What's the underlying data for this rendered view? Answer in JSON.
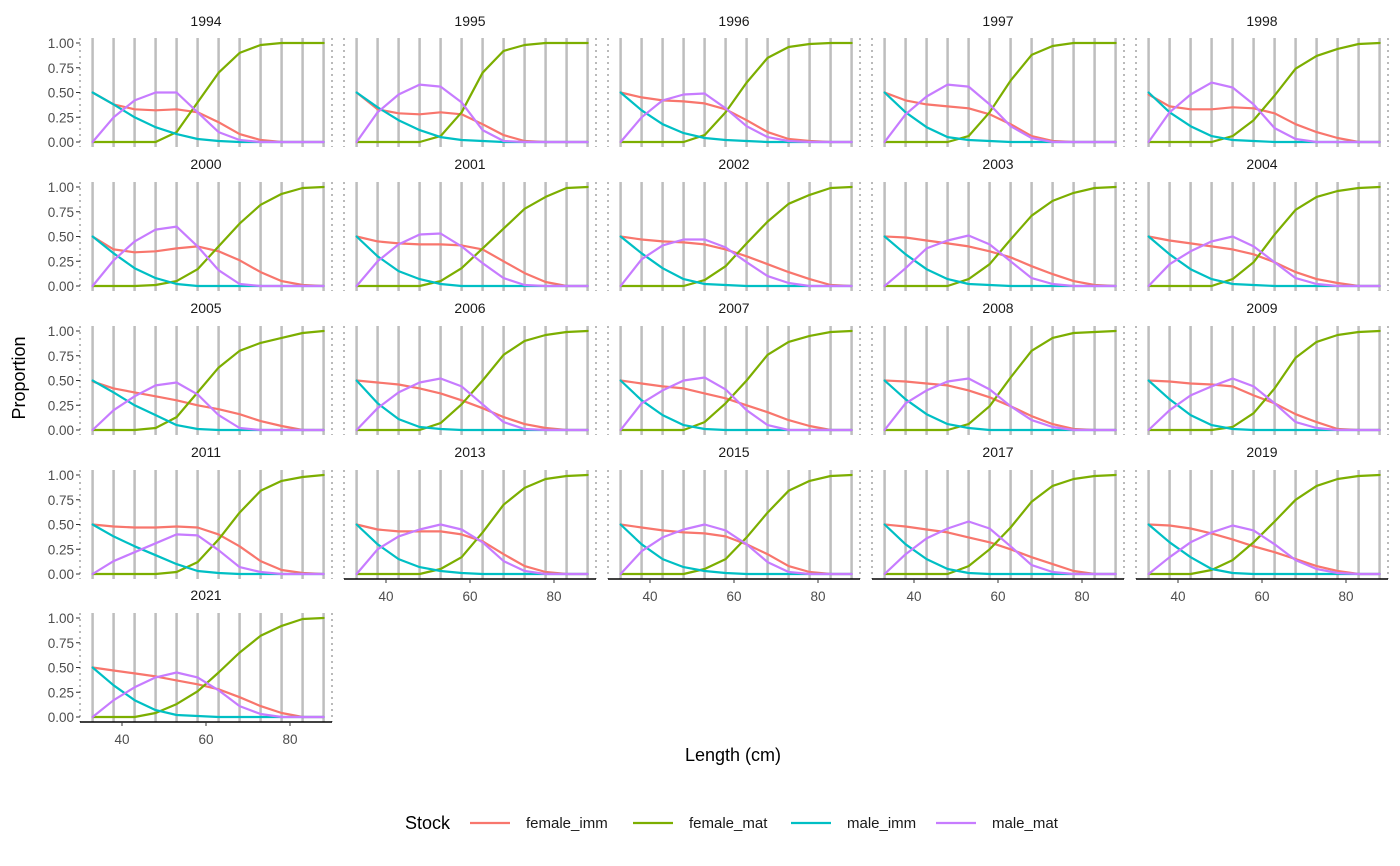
{
  "chart_data": {
    "type": "line",
    "facet_by": "year",
    "xlabel": "Length (cm)",
    "ylabel": "Proportion",
    "xlim": [
      30,
      90
    ],
    "ylim": [
      0,
      1
    ],
    "x_ticks": [
      40,
      60,
      80
    ],
    "y_ticks": [
      0,
      0.25,
      0.5,
      0.75,
      1
    ],
    "y_tick_labels": [
      "0.00",
      "0.25",
      "0.50",
      "0.75",
      "1.00"
    ],
    "grid": "vertical major grid lines only",
    "x": [
      33,
      38,
      43,
      48,
      53,
      58,
      63,
      68,
      73,
      78,
      83,
      88
    ],
    "legend": {
      "title": "Stock",
      "position": "bottom",
      "entries": [
        {
          "name": "female_imm",
          "color": "#F8766D"
        },
        {
          "name": "female_mat",
          "color": "#7CAE00"
        },
        {
          "name": "male_imm",
          "color": "#00BFC4"
        },
        {
          "name": "male_mat",
          "color": "#C77CFF"
        }
      ]
    },
    "panels": [
      {
        "label": "1994",
        "female_imm": [
          0.5,
          0.38,
          0.33,
          0.32,
          0.33,
          0.3,
          0.2,
          0.08,
          0.02,
          0,
          0,
          0
        ],
        "female_mat": [
          0,
          0,
          0,
          0,
          0.1,
          0.4,
          0.7,
          0.9,
          0.98,
          1,
          1,
          1
        ],
        "male_imm": [
          0.5,
          0.38,
          0.25,
          0.15,
          0.08,
          0.03,
          0.01,
          0,
          0,
          0,
          0,
          0
        ],
        "male_mat": [
          0,
          0.25,
          0.42,
          0.5,
          0.5,
          0.3,
          0.1,
          0.02,
          0,
          0,
          0,
          0
        ]
      },
      {
        "label": "1995",
        "female_imm": [
          0.5,
          0.33,
          0.29,
          0.28,
          0.3,
          0.28,
          0.18,
          0.07,
          0.01,
          0,
          0,
          0
        ],
        "female_mat": [
          0,
          0,
          0,
          0,
          0.06,
          0.3,
          0.7,
          0.92,
          0.98,
          1,
          1,
          1
        ],
        "male_imm": [
          0.5,
          0.35,
          0.22,
          0.12,
          0.05,
          0.02,
          0.01,
          0,
          0,
          0,
          0,
          0
        ],
        "male_mat": [
          0,
          0.3,
          0.48,
          0.58,
          0.56,
          0.4,
          0.12,
          0.01,
          0,
          0,
          0,
          0
        ]
      },
      {
        "label": "1996",
        "female_imm": [
          0.5,
          0.45,
          0.42,
          0.41,
          0.39,
          0.33,
          0.22,
          0.1,
          0.03,
          0.01,
          0,
          0
        ],
        "female_mat": [
          0,
          0,
          0,
          0,
          0.07,
          0.3,
          0.6,
          0.85,
          0.96,
          0.99,
          1,
          1
        ],
        "male_imm": [
          0.5,
          0.32,
          0.18,
          0.09,
          0.04,
          0.02,
          0.01,
          0,
          0,
          0,
          0,
          0
        ],
        "male_mat": [
          0,
          0.25,
          0.42,
          0.48,
          0.49,
          0.34,
          0.16,
          0.05,
          0.01,
          0,
          0,
          0
        ]
      },
      {
        "label": "1997",
        "female_imm": [
          0.5,
          0.42,
          0.38,
          0.36,
          0.34,
          0.28,
          0.18,
          0.06,
          0.01,
          0,
          0,
          0
        ],
        "female_mat": [
          0,
          0,
          0,
          0,
          0.06,
          0.3,
          0.62,
          0.88,
          0.97,
          1,
          1,
          1
        ],
        "male_imm": [
          0.5,
          0.3,
          0.15,
          0.05,
          0.02,
          0.01,
          0,
          0,
          0,
          0,
          0,
          0
        ],
        "male_mat": [
          0,
          0.28,
          0.46,
          0.58,
          0.56,
          0.38,
          0.16,
          0.04,
          0,
          0,
          0,
          0
        ]
      },
      {
        "label": "1998",
        "female_imm": [
          0.48,
          0.36,
          0.33,
          0.33,
          0.35,
          0.34,
          0.29,
          0.18,
          0.1,
          0.04,
          0,
          0
        ],
        "female_mat": [
          0,
          0,
          0,
          0,
          0.06,
          0.22,
          0.47,
          0.74,
          0.87,
          0.94,
          0.99,
          1
        ],
        "male_imm": [
          0.5,
          0.3,
          0.16,
          0.06,
          0.02,
          0.01,
          0,
          0,
          0,
          0,
          0,
          0
        ],
        "male_mat": [
          0,
          0.3,
          0.48,
          0.6,
          0.55,
          0.38,
          0.14,
          0.03,
          0,
          0,
          0,
          0
        ]
      },
      {
        "label": "2000",
        "female_imm": [
          0.5,
          0.37,
          0.34,
          0.35,
          0.38,
          0.4,
          0.35,
          0.26,
          0.14,
          0.05,
          0.01,
          0
        ],
        "female_mat": [
          0,
          0,
          0,
          0.01,
          0.05,
          0.17,
          0.4,
          0.63,
          0.82,
          0.93,
          0.99,
          1
        ],
        "male_imm": [
          0.5,
          0.33,
          0.18,
          0.08,
          0.02,
          0,
          0,
          0,
          0,
          0,
          0,
          0
        ],
        "male_mat": [
          0,
          0.26,
          0.45,
          0.57,
          0.6,
          0.4,
          0.16,
          0.02,
          0,
          0,
          0,
          0
        ]
      },
      {
        "label": "2001",
        "female_imm": [
          0.5,
          0.45,
          0.43,
          0.42,
          0.42,
          0.41,
          0.37,
          0.25,
          0.13,
          0.04,
          0,
          0
        ],
        "female_mat": [
          0,
          0,
          0,
          0,
          0.05,
          0.18,
          0.38,
          0.58,
          0.78,
          0.9,
          0.99,
          1
        ],
        "male_imm": [
          0.5,
          0.3,
          0.15,
          0.07,
          0.02,
          0,
          0,
          0,
          0,
          0,
          0,
          0
        ],
        "male_mat": [
          0,
          0.25,
          0.42,
          0.52,
          0.53,
          0.4,
          0.23,
          0.08,
          0.01,
          0,
          0,
          0
        ]
      },
      {
        "label": "2002",
        "female_imm": [
          0.5,
          0.47,
          0.45,
          0.44,
          0.42,
          0.37,
          0.3,
          0.22,
          0.14,
          0.07,
          0.01,
          0
        ],
        "female_mat": [
          0,
          0,
          0,
          0,
          0.06,
          0.2,
          0.43,
          0.65,
          0.83,
          0.92,
          0.99,
          1
        ],
        "male_imm": [
          0.5,
          0.33,
          0.18,
          0.07,
          0.02,
          0.01,
          0,
          0,
          0,
          0,
          0,
          0
        ],
        "male_mat": [
          0,
          0.27,
          0.41,
          0.47,
          0.47,
          0.39,
          0.24,
          0.1,
          0.03,
          0,
          0,
          0
        ]
      },
      {
        "label": "2003",
        "female_imm": [
          0.5,
          0.49,
          0.46,
          0.43,
          0.4,
          0.35,
          0.29,
          0.2,
          0.12,
          0.05,
          0.01,
          0
        ],
        "female_mat": [
          0,
          0,
          0,
          0,
          0.07,
          0.22,
          0.47,
          0.71,
          0.86,
          0.94,
          0.99,
          1
        ],
        "male_imm": [
          0.5,
          0.32,
          0.17,
          0.07,
          0.02,
          0.01,
          0,
          0,
          0,
          0,
          0,
          0
        ],
        "male_mat": [
          0,
          0.18,
          0.38,
          0.46,
          0.51,
          0.42,
          0.25,
          0.08,
          0.02,
          0,
          0,
          0
        ]
      },
      {
        "label": "2004",
        "female_imm": [
          0.5,
          0.46,
          0.43,
          0.4,
          0.37,
          0.32,
          0.24,
          0.14,
          0.07,
          0.03,
          0,
          0
        ],
        "female_mat": [
          0,
          0,
          0,
          0,
          0.07,
          0.24,
          0.52,
          0.77,
          0.9,
          0.96,
          0.99,
          1
        ],
        "male_imm": [
          0.5,
          0.32,
          0.17,
          0.07,
          0.02,
          0.01,
          0,
          0,
          0,
          0,
          0,
          0
        ],
        "male_mat": [
          0,
          0.22,
          0.35,
          0.45,
          0.5,
          0.4,
          0.24,
          0.08,
          0.02,
          0,
          0,
          0
        ]
      },
      {
        "label": "2005",
        "female_imm": [
          0.49,
          0.42,
          0.38,
          0.34,
          0.3,
          0.25,
          0.21,
          0.16,
          0.09,
          0.04,
          0,
          0
        ],
        "female_mat": [
          0,
          0,
          0,
          0.02,
          0.13,
          0.38,
          0.63,
          0.8,
          0.88,
          0.93,
          0.98,
          1
        ],
        "male_imm": [
          0.5,
          0.38,
          0.25,
          0.15,
          0.05,
          0.01,
          0,
          0,
          0,
          0,
          0,
          0
        ],
        "male_mat": [
          0,
          0.2,
          0.34,
          0.45,
          0.48,
          0.36,
          0.15,
          0.02,
          0,
          0,
          0,
          0
        ]
      },
      {
        "label": "2006",
        "female_imm": [
          0.5,
          0.48,
          0.46,
          0.42,
          0.37,
          0.3,
          0.22,
          0.13,
          0.06,
          0.02,
          0,
          0
        ],
        "female_mat": [
          0,
          0,
          0,
          0,
          0.07,
          0.26,
          0.5,
          0.76,
          0.9,
          0.96,
          0.99,
          1
        ],
        "male_imm": [
          0.5,
          0.27,
          0.11,
          0.03,
          0.01,
          0,
          0,
          0,
          0,
          0,
          0,
          0
        ],
        "male_mat": [
          0,
          0.22,
          0.38,
          0.48,
          0.52,
          0.44,
          0.26,
          0.08,
          0.01,
          0,
          0,
          0
        ]
      },
      {
        "label": "2007",
        "female_imm": [
          0.5,
          0.47,
          0.44,
          0.42,
          0.37,
          0.32,
          0.25,
          0.18,
          0.1,
          0.04,
          0,
          0
        ],
        "female_mat": [
          0,
          0,
          0,
          0,
          0.08,
          0.27,
          0.5,
          0.76,
          0.89,
          0.95,
          0.99,
          1
        ],
        "male_imm": [
          0.5,
          0.3,
          0.15,
          0.05,
          0.01,
          0,
          0,
          0,
          0,
          0,
          0,
          0
        ],
        "male_mat": [
          0,
          0.27,
          0.4,
          0.5,
          0.53,
          0.41,
          0.2,
          0.05,
          0,
          0,
          0,
          0
        ]
      },
      {
        "label": "2008",
        "female_imm": [
          0.5,
          0.49,
          0.47,
          0.45,
          0.4,
          0.33,
          0.24,
          0.14,
          0.06,
          0.01,
          0,
          0
        ],
        "female_mat": [
          0,
          0,
          0,
          0,
          0.06,
          0.24,
          0.53,
          0.8,
          0.93,
          0.98,
          0.99,
          1
        ],
        "male_imm": [
          0.5,
          0.31,
          0.16,
          0.06,
          0.02,
          0,
          0,
          0,
          0,
          0,
          0,
          0
        ],
        "male_mat": [
          0,
          0.27,
          0.4,
          0.49,
          0.52,
          0.41,
          0.24,
          0.1,
          0.03,
          0,
          0,
          0
        ]
      },
      {
        "label": "2009",
        "female_imm": [
          0.5,
          0.49,
          0.47,
          0.46,
          0.44,
          0.35,
          0.27,
          0.16,
          0.08,
          0.01,
          0,
          0
        ],
        "female_mat": [
          0,
          0,
          0,
          0,
          0.03,
          0.17,
          0.42,
          0.73,
          0.89,
          0.96,
          0.99,
          1
        ],
        "male_imm": [
          0.5,
          0.31,
          0.15,
          0.05,
          0.01,
          0,
          0,
          0,
          0,
          0,
          0,
          0
        ],
        "male_mat": [
          0,
          0.2,
          0.35,
          0.44,
          0.52,
          0.44,
          0.27,
          0.08,
          0.02,
          0,
          0,
          0
        ]
      },
      {
        "label": "2011",
        "female_imm": [
          0.5,
          0.48,
          0.47,
          0.47,
          0.48,
          0.47,
          0.4,
          0.28,
          0.13,
          0.04,
          0.01,
          0
        ],
        "female_mat": [
          0,
          0,
          0,
          0,
          0.02,
          0.12,
          0.35,
          0.62,
          0.84,
          0.94,
          0.98,
          1
        ],
        "male_imm": [
          0.5,
          0.38,
          0.28,
          0.19,
          0.1,
          0.03,
          0.01,
          0,
          0,
          0,
          0,
          0
        ],
        "male_mat": [
          0,
          0.13,
          0.22,
          0.31,
          0.4,
          0.39,
          0.24,
          0.07,
          0.02,
          0,
          0,
          0
        ]
      },
      {
        "label": "2013",
        "female_imm": [
          0.5,
          0.45,
          0.43,
          0.43,
          0.43,
          0.4,
          0.33,
          0.2,
          0.08,
          0.02,
          0,
          0
        ],
        "female_mat": [
          0,
          0,
          0,
          0,
          0.05,
          0.17,
          0.42,
          0.7,
          0.87,
          0.96,
          0.99,
          1
        ],
        "male_imm": [
          0.5,
          0.3,
          0.15,
          0.07,
          0.03,
          0.01,
          0,
          0,
          0,
          0,
          0,
          0
        ],
        "male_mat": [
          0,
          0.25,
          0.38,
          0.45,
          0.5,
          0.45,
          0.32,
          0.13,
          0.03,
          0,
          0,
          0
        ]
      },
      {
        "label": "2015",
        "female_imm": [
          0.5,
          0.47,
          0.44,
          0.42,
          0.41,
          0.38,
          0.3,
          0.2,
          0.08,
          0.02,
          0,
          0
        ],
        "female_mat": [
          0,
          0,
          0,
          0,
          0.05,
          0.15,
          0.37,
          0.62,
          0.84,
          0.94,
          0.99,
          1
        ],
        "male_imm": [
          0.5,
          0.3,
          0.15,
          0.07,
          0.03,
          0.01,
          0,
          0,
          0,
          0,
          0,
          0
        ],
        "male_mat": [
          0,
          0.23,
          0.37,
          0.45,
          0.5,
          0.44,
          0.3,
          0.12,
          0.02,
          0,
          0,
          0
        ]
      },
      {
        "label": "2017",
        "female_imm": [
          0.5,
          0.48,
          0.45,
          0.42,
          0.37,
          0.32,
          0.25,
          0.17,
          0.1,
          0.03,
          0,
          0
        ],
        "female_mat": [
          0,
          0,
          0,
          0,
          0.08,
          0.25,
          0.47,
          0.73,
          0.89,
          0.96,
          0.99,
          1
        ],
        "male_imm": [
          0.5,
          0.3,
          0.15,
          0.05,
          0.01,
          0,
          0,
          0,
          0,
          0,
          0,
          0
        ],
        "male_mat": [
          0,
          0.2,
          0.36,
          0.46,
          0.53,
          0.46,
          0.28,
          0.09,
          0.02,
          0,
          0,
          0
        ]
      },
      {
        "label": "2019",
        "female_imm": [
          0.5,
          0.49,
          0.46,
          0.41,
          0.35,
          0.28,
          0.22,
          0.15,
          0.08,
          0.03,
          0,
          0
        ],
        "female_mat": [
          0,
          0,
          0,
          0.04,
          0.14,
          0.32,
          0.53,
          0.75,
          0.89,
          0.96,
          0.99,
          1
        ],
        "male_imm": [
          0.5,
          0.32,
          0.17,
          0.05,
          0.01,
          0,
          0,
          0,
          0,
          0,
          0,
          0
        ],
        "male_mat": [
          0,
          0.17,
          0.32,
          0.42,
          0.49,
          0.44,
          0.3,
          0.14,
          0.05,
          0.01,
          0,
          0
        ]
      },
      {
        "label": "2021",
        "female_imm": [
          0.5,
          0.47,
          0.44,
          0.41,
          0.37,
          0.33,
          0.28,
          0.2,
          0.11,
          0.04,
          0,
          0
        ],
        "female_mat": [
          0,
          0,
          0,
          0.04,
          0.13,
          0.26,
          0.45,
          0.65,
          0.82,
          0.92,
          0.99,
          1
        ],
        "male_imm": [
          0.5,
          0.32,
          0.17,
          0.07,
          0.02,
          0.01,
          0,
          0,
          0,
          0,
          0,
          0
        ],
        "male_mat": [
          0,
          0.17,
          0.3,
          0.4,
          0.45,
          0.4,
          0.27,
          0.11,
          0.03,
          0,
          0,
          0
        ]
      }
    ]
  }
}
